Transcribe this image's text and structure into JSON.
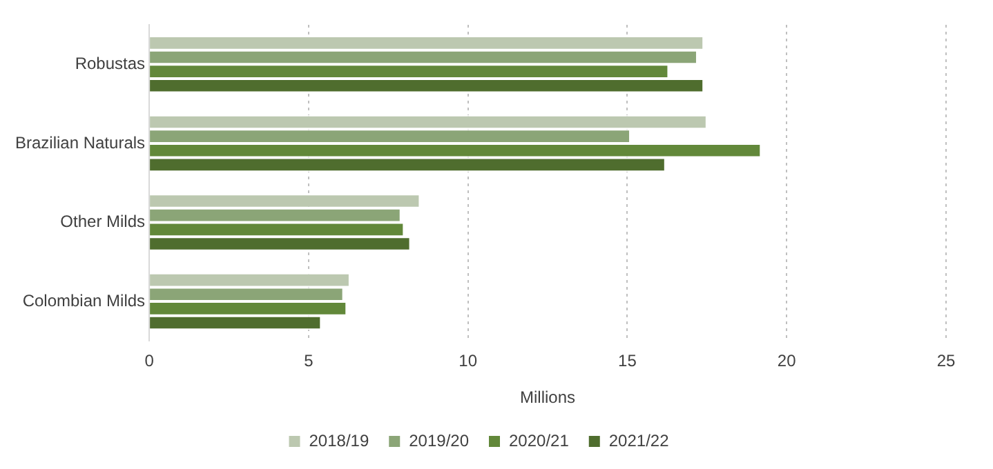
{
  "chart_data": {
    "type": "bar",
    "orientation": "horizontal",
    "xlabel": "Millions",
    "categories": [
      "Robustas",
      "Brazilian Naturals",
      "Other Milds",
      "Colombian Milds"
    ],
    "series": [
      {
        "name": "2018/19",
        "color": "#bcc8b0",
        "values": [
          17.4,
          17.5,
          8.5,
          6.3
        ]
      },
      {
        "name": "2019/20",
        "color": "#8ba577",
        "values": [
          17.2,
          15.1,
          7.9,
          6.1
        ]
      },
      {
        "name": "2020/21",
        "color": "#62883a",
        "values": [
          16.3,
          19.2,
          8.0,
          6.2
        ]
      },
      {
        "name": "2021/22",
        "color": "#4f6d2e",
        "values": [
          17.4,
          16.2,
          8.2,
          5.4
        ]
      }
    ],
    "xlim": [
      0,
      25
    ],
    "xticks": [
      0,
      5,
      10,
      15,
      20,
      25
    ],
    "grid": "x",
    "legend": "bottom"
  }
}
